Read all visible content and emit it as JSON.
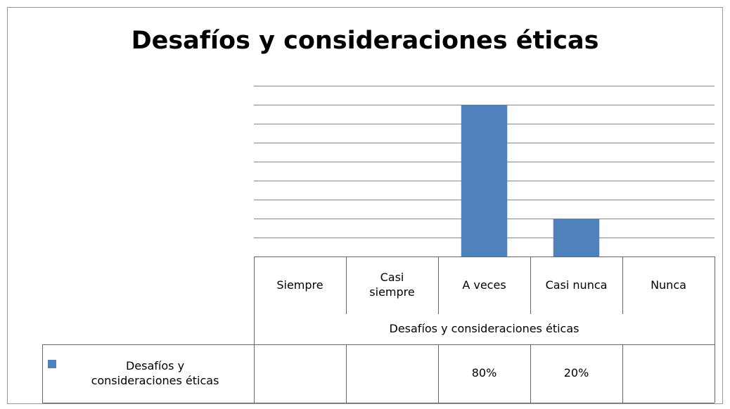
{
  "chart_data": {
    "type": "bar",
    "title": "Desafíos y consideraciones éticas",
    "x_label": "Desafíos y consideraciones éticas",
    "categories": [
      "Siempre",
      "Casi siempre",
      "A veces",
      "Casi nunca",
      "Nunca"
    ],
    "series": [
      {
        "name": "Desafíos y consideraciones éticas",
        "color": "#4f81bd",
        "values": [
          null,
          null,
          80,
          20,
          null
        ],
        "value_labels": [
          null,
          null,
          "80%",
          "20%",
          null
        ]
      }
    ],
    "ylim": [
      0,
      90
    ],
    "yticks": [
      0,
      10,
      20,
      30,
      40,
      50,
      60,
      70,
      80,
      90
    ],
    "grid": true
  }
}
